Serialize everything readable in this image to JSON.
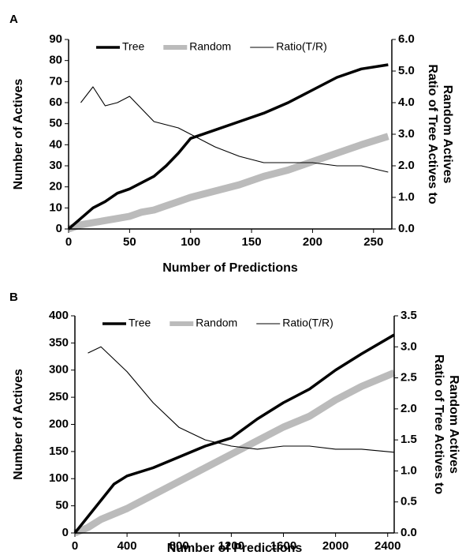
{
  "chart_data": [
    {
      "type": "line",
      "label": "A",
      "x_label": "Number of Predictions",
      "y_label": "Number of Actives",
      "y2_label": [
        "Ratio of Tree Actives to",
        "Random Actives"
      ],
      "x": [
        0,
        10,
        20,
        30,
        40,
        50,
        60,
        70,
        80,
        90,
        100,
        120,
        140,
        160,
        180,
        200,
        220,
        240,
        262
      ],
      "series": [
        {
          "name": "Tree",
          "color": "#000000",
          "values": [
            0,
            5,
            10,
            13,
            17,
            19,
            22,
            25,
            30,
            36,
            43,
            47,
            51,
            55,
            60,
            66,
            72,
            76,
            78
          ]
        },
        {
          "name": "Random",
          "color": "#bbbbbb",
          "values": [
            0,
            2,
            3,
            4,
            5,
            6,
            8,
            9,
            11,
            13,
            15,
            18,
            21,
            25,
            28,
            32,
            36,
            40,
            44
          ]
        },
        {
          "name": "Ratio(T/R)",
          "color": "#000000",
          "axis": "y2",
          "values": [
            null,
            4.0,
            4.5,
            3.9,
            4.0,
            4.2,
            3.8,
            3.4,
            3.3,
            3.2,
            3.0,
            2.6,
            2.3,
            2.1,
            2.1,
            2.1,
            2.0,
            2.0,
            1.8
          ]
        }
      ],
      "xlim": [
        0,
        265
      ],
      "xticks": [
        0,
        50,
        100,
        150,
        200,
        250
      ],
      "ylim": [
        0,
        90
      ],
      "yticks": [
        0,
        10,
        20,
        30,
        40,
        50,
        60,
        70,
        80,
        90
      ],
      "y2lim": [
        0,
        6
      ],
      "y2ticks": [
        {
          "value": 0,
          "label": "0.0"
        },
        {
          "value": 1,
          "label": "1.0"
        },
        {
          "value": 2,
          "label": "2.0"
        },
        {
          "value": 3,
          "label": "3.0"
        },
        {
          "value": 4,
          "label": "4.0"
        },
        {
          "value": 5,
          "label": "5.0"
        },
        {
          "value": 6,
          "label": "6.0"
        }
      ]
    },
    {
      "type": "line",
      "label": "B",
      "x_label": "Number of Predictions",
      "y_label": "Number of Actives",
      "y2_label": [
        "Ratio of Tree Actives to",
        "Random Actives"
      ],
      "x": [
        0,
        100,
        200,
        300,
        400,
        600,
        800,
        1000,
        1200,
        1400,
        1600,
        1800,
        2000,
        2200,
        2450
      ],
      "series": [
        {
          "name": "Tree",
          "color": "#000000",
          "values": [
            0,
            30,
            60,
            90,
            105,
            120,
            140,
            160,
            175,
            210,
            240,
            265,
            300,
            330,
            365
          ]
        },
        {
          "name": "Random",
          "color": "#bbbbbb",
          "values": [
            0,
            10,
            25,
            35,
            45,
            70,
            95,
            120,
            145,
            170,
            195,
            215,
            245,
            270,
            295
          ]
        },
        {
          "name": "Ratio(T/R)",
          "color": "#000000",
          "axis": "y2",
          "values": [
            null,
            2.9,
            3.0,
            2.8,
            2.6,
            2.1,
            1.7,
            1.5,
            1.4,
            1.35,
            1.4,
            1.4,
            1.35,
            1.35,
            1.3
          ]
        }
      ],
      "xlim": [
        0,
        2450
      ],
      "xticks": [
        0,
        400,
        800,
        1200,
        1600,
        2000,
        2400
      ],
      "ylim": [
        0,
        400
      ],
      "yticks": [
        0,
        50,
        100,
        150,
        200,
        250,
        300,
        350,
        400
      ],
      "y2lim": [
        0,
        3.5
      ],
      "y2ticks": [
        {
          "value": 0,
          "label": "0.0"
        },
        0.5,
        {
          "value": 1,
          "label": "1.0"
        },
        1.5,
        {
          "value": 2,
          "label": "2.0"
        },
        2.5,
        {
          "value": 3,
          "label": "3.0"
        },
        3.5
      ]
    }
  ]
}
